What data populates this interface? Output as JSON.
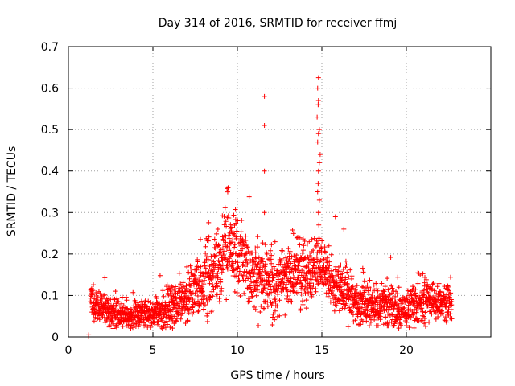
{
  "chart_data": {
    "type": "scatter",
    "title": "Day 314 of 2016, SRMTID for receiver ffmj",
    "xlabel": "GPS time / hours",
    "ylabel": "SRMTID / TECUs",
    "xlim": [
      0,
      25
    ],
    "ylim": [
      0,
      0.7
    ],
    "xticks": [
      0,
      5,
      10,
      15,
      20
    ],
    "yticks": [
      0,
      0.1,
      0.2,
      0.3,
      0.4,
      0.5,
      0.6,
      0.7
    ],
    "xtick_labels": [
      "0",
      "5",
      "10",
      "15",
      "20"
    ],
    "ytick_labels": [
      "0",
      "0.1",
      "0.2",
      "0.3",
      "0.4",
      "0.5",
      "0.6",
      "0.7"
    ],
    "grid": true,
    "marker": "+",
    "marker_color": "#ff0000",
    "trend": [
      {
        "x": 1.2,
        "y": 0.0
      },
      {
        "x": 1.3,
        "y": 0.09
      },
      {
        "x": 1.5,
        "y": 0.07
      },
      {
        "x": 2.0,
        "y": 0.07
      },
      {
        "x": 3.0,
        "y": 0.055
      },
      {
        "x": 4.0,
        "y": 0.055
      },
      {
        "x": 5.0,
        "y": 0.06
      },
      {
        "x": 6.0,
        "y": 0.065
      },
      {
        "x": 7.0,
        "y": 0.09
      },
      {
        "x": 8.0,
        "y": 0.14
      },
      {
        "x": 9.0,
        "y": 0.17
      },
      {
        "x": 9.5,
        "y": 0.22
      },
      {
        "x": 10.0,
        "y": 0.2
      },
      {
        "x": 11.0,
        "y": 0.14
      },
      {
        "x": 12.0,
        "y": 0.13
      },
      {
        "x": 13.0,
        "y": 0.14
      },
      {
        "x": 14.0,
        "y": 0.16
      },
      {
        "x": 15.0,
        "y": 0.17
      },
      {
        "x": 15.5,
        "y": 0.14
      },
      {
        "x": 16.0,
        "y": 0.12
      },
      {
        "x": 17.0,
        "y": 0.085
      },
      {
        "x": 18.0,
        "y": 0.08
      },
      {
        "x": 19.0,
        "y": 0.07
      },
      {
        "x": 20.0,
        "y": 0.07
      },
      {
        "x": 21.0,
        "y": 0.09
      },
      {
        "x": 22.0,
        "y": 0.085
      },
      {
        "x": 22.7,
        "y": 0.08
      }
    ],
    "spread": [
      {
        "x": 1.3,
        "s": 0.02
      },
      {
        "x": 5.0,
        "s": 0.015
      },
      {
        "x": 8.0,
        "s": 0.04
      },
      {
        "x": 9.5,
        "s": 0.05
      },
      {
        "x": 11.0,
        "s": 0.04
      },
      {
        "x": 14.0,
        "s": 0.04
      },
      {
        "x": 16.0,
        "s": 0.03
      },
      {
        "x": 18.0,
        "s": 0.025
      },
      {
        "x": 22.7,
        "s": 0.025
      }
    ],
    "x_start": 1.3,
    "x_end": 22.7,
    "point_count": 2200,
    "outliers": [
      {
        "x": 1.2,
        "y": 0.0
      },
      {
        "x": 1.2,
        "y": 0.005
      },
      {
        "x": 11.6,
        "y": 0.58
      },
      {
        "x": 11.6,
        "y": 0.51
      },
      {
        "x": 11.6,
        "y": 0.4
      },
      {
        "x": 11.6,
        "y": 0.3
      },
      {
        "x": 14.8,
        "y": 0.625
      },
      {
        "x": 14.75,
        "y": 0.6
      },
      {
        "x": 14.8,
        "y": 0.57
      },
      {
        "x": 14.78,
        "y": 0.56
      },
      {
        "x": 14.72,
        "y": 0.53
      },
      {
        "x": 14.85,
        "y": 0.5
      },
      {
        "x": 14.8,
        "y": 0.49
      },
      {
        "x": 14.75,
        "y": 0.47
      },
      {
        "x": 14.9,
        "y": 0.44
      },
      {
        "x": 14.85,
        "y": 0.42
      },
      {
        "x": 14.8,
        "y": 0.4
      },
      {
        "x": 14.78,
        "y": 0.37
      },
      {
        "x": 14.75,
        "y": 0.35
      },
      {
        "x": 14.85,
        "y": 0.33
      },
      {
        "x": 14.8,
        "y": 0.3
      },
      {
        "x": 14.82,
        "y": 0.27
      },
      {
        "x": 15.8,
        "y": 0.29
      },
      {
        "x": 16.3,
        "y": 0.26
      }
    ]
  }
}
